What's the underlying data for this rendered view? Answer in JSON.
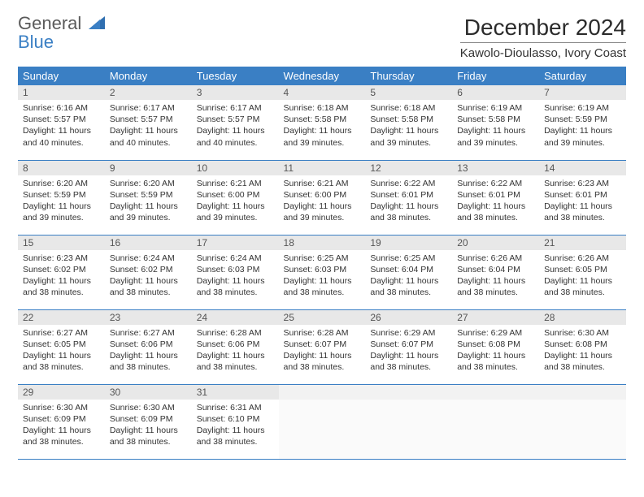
{
  "logo": {
    "text1": "General",
    "text2": "Blue"
  },
  "title": "December 2024",
  "location": "Kawolo-Dioulasso, Ivory Coast",
  "colors": {
    "header_bg": "#3a7fc4",
    "header_text": "#ffffff",
    "daynum_bg": "#e8e8e8",
    "row_border": "#3a7fc4",
    "body_text": "#333333",
    "page_bg": "#ffffff"
  },
  "weekdays": [
    "Sunday",
    "Monday",
    "Tuesday",
    "Wednesday",
    "Thursday",
    "Friday",
    "Saturday"
  ],
  "grid": {
    "rows": 5,
    "cols": 7
  },
  "cells": [
    {
      "day": "1",
      "sunrise": "Sunrise: 6:16 AM",
      "sunset": "Sunset: 5:57 PM",
      "daylight": "Daylight: 11 hours and 40 minutes."
    },
    {
      "day": "2",
      "sunrise": "Sunrise: 6:17 AM",
      "sunset": "Sunset: 5:57 PM",
      "daylight": "Daylight: 11 hours and 40 minutes."
    },
    {
      "day": "3",
      "sunrise": "Sunrise: 6:17 AM",
      "sunset": "Sunset: 5:57 PM",
      "daylight": "Daylight: 11 hours and 40 minutes."
    },
    {
      "day": "4",
      "sunrise": "Sunrise: 6:18 AM",
      "sunset": "Sunset: 5:58 PM",
      "daylight": "Daylight: 11 hours and 39 minutes."
    },
    {
      "day": "5",
      "sunrise": "Sunrise: 6:18 AM",
      "sunset": "Sunset: 5:58 PM",
      "daylight": "Daylight: 11 hours and 39 minutes."
    },
    {
      "day": "6",
      "sunrise": "Sunrise: 6:19 AM",
      "sunset": "Sunset: 5:58 PM",
      "daylight": "Daylight: 11 hours and 39 minutes."
    },
    {
      "day": "7",
      "sunrise": "Sunrise: 6:19 AM",
      "sunset": "Sunset: 5:59 PM",
      "daylight": "Daylight: 11 hours and 39 minutes."
    },
    {
      "day": "8",
      "sunrise": "Sunrise: 6:20 AM",
      "sunset": "Sunset: 5:59 PM",
      "daylight": "Daylight: 11 hours and 39 minutes."
    },
    {
      "day": "9",
      "sunrise": "Sunrise: 6:20 AM",
      "sunset": "Sunset: 5:59 PM",
      "daylight": "Daylight: 11 hours and 39 minutes."
    },
    {
      "day": "10",
      "sunrise": "Sunrise: 6:21 AM",
      "sunset": "Sunset: 6:00 PM",
      "daylight": "Daylight: 11 hours and 39 minutes."
    },
    {
      "day": "11",
      "sunrise": "Sunrise: 6:21 AM",
      "sunset": "Sunset: 6:00 PM",
      "daylight": "Daylight: 11 hours and 39 minutes."
    },
    {
      "day": "12",
      "sunrise": "Sunrise: 6:22 AM",
      "sunset": "Sunset: 6:01 PM",
      "daylight": "Daylight: 11 hours and 38 minutes."
    },
    {
      "day": "13",
      "sunrise": "Sunrise: 6:22 AM",
      "sunset": "Sunset: 6:01 PM",
      "daylight": "Daylight: 11 hours and 38 minutes."
    },
    {
      "day": "14",
      "sunrise": "Sunrise: 6:23 AM",
      "sunset": "Sunset: 6:01 PM",
      "daylight": "Daylight: 11 hours and 38 minutes."
    },
    {
      "day": "15",
      "sunrise": "Sunrise: 6:23 AM",
      "sunset": "Sunset: 6:02 PM",
      "daylight": "Daylight: 11 hours and 38 minutes."
    },
    {
      "day": "16",
      "sunrise": "Sunrise: 6:24 AM",
      "sunset": "Sunset: 6:02 PM",
      "daylight": "Daylight: 11 hours and 38 minutes."
    },
    {
      "day": "17",
      "sunrise": "Sunrise: 6:24 AM",
      "sunset": "Sunset: 6:03 PM",
      "daylight": "Daylight: 11 hours and 38 minutes."
    },
    {
      "day": "18",
      "sunrise": "Sunrise: 6:25 AM",
      "sunset": "Sunset: 6:03 PM",
      "daylight": "Daylight: 11 hours and 38 minutes."
    },
    {
      "day": "19",
      "sunrise": "Sunrise: 6:25 AM",
      "sunset": "Sunset: 6:04 PM",
      "daylight": "Daylight: 11 hours and 38 minutes."
    },
    {
      "day": "20",
      "sunrise": "Sunrise: 6:26 AM",
      "sunset": "Sunset: 6:04 PM",
      "daylight": "Daylight: 11 hours and 38 minutes."
    },
    {
      "day": "21",
      "sunrise": "Sunrise: 6:26 AM",
      "sunset": "Sunset: 6:05 PM",
      "daylight": "Daylight: 11 hours and 38 minutes."
    },
    {
      "day": "22",
      "sunrise": "Sunrise: 6:27 AM",
      "sunset": "Sunset: 6:05 PM",
      "daylight": "Daylight: 11 hours and 38 minutes."
    },
    {
      "day": "23",
      "sunrise": "Sunrise: 6:27 AM",
      "sunset": "Sunset: 6:06 PM",
      "daylight": "Daylight: 11 hours and 38 minutes."
    },
    {
      "day": "24",
      "sunrise": "Sunrise: 6:28 AM",
      "sunset": "Sunset: 6:06 PM",
      "daylight": "Daylight: 11 hours and 38 minutes."
    },
    {
      "day": "25",
      "sunrise": "Sunrise: 6:28 AM",
      "sunset": "Sunset: 6:07 PM",
      "daylight": "Daylight: 11 hours and 38 minutes."
    },
    {
      "day": "26",
      "sunrise": "Sunrise: 6:29 AM",
      "sunset": "Sunset: 6:07 PM",
      "daylight": "Daylight: 11 hours and 38 minutes."
    },
    {
      "day": "27",
      "sunrise": "Sunrise: 6:29 AM",
      "sunset": "Sunset: 6:08 PM",
      "daylight": "Daylight: 11 hours and 38 minutes."
    },
    {
      "day": "28",
      "sunrise": "Sunrise: 6:30 AM",
      "sunset": "Sunset: 6:08 PM",
      "daylight": "Daylight: 11 hours and 38 minutes."
    },
    {
      "day": "29",
      "sunrise": "Sunrise: 6:30 AM",
      "sunset": "Sunset: 6:09 PM",
      "daylight": "Daylight: 11 hours and 38 minutes."
    },
    {
      "day": "30",
      "sunrise": "Sunrise: 6:30 AM",
      "sunset": "Sunset: 6:09 PM",
      "daylight": "Daylight: 11 hours and 38 minutes."
    },
    {
      "day": "31",
      "sunrise": "Sunrise: 6:31 AM",
      "sunset": "Sunset: 6:10 PM",
      "daylight": "Daylight: 11 hours and 38 minutes."
    },
    {
      "empty": true
    },
    {
      "empty": true
    },
    {
      "empty": true
    },
    {
      "empty": true
    }
  ]
}
